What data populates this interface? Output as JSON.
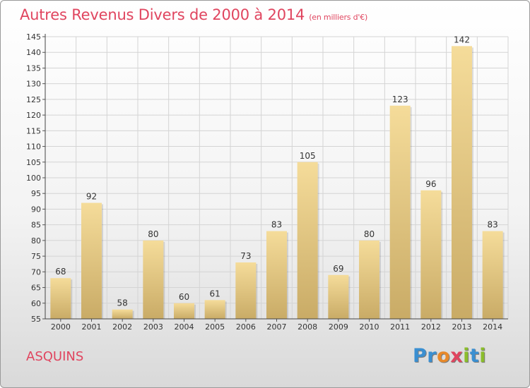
{
  "header": {
    "title": "Autres Revenus Divers de 2000 à 2014",
    "subtitle": "(en milliers d'€)"
  },
  "footer": {
    "town": "ASQUINS",
    "logo_letters": [
      {
        "char": "P",
        "color": "#3a8fd1"
      },
      {
        "char": "r",
        "color": "#3a8fd1"
      },
      {
        "char": "o",
        "color": "#e8892a"
      },
      {
        "char": "x",
        "color": "#e0455f"
      },
      {
        "char": "i",
        "color": "#8bbd2c"
      },
      {
        "char": "t",
        "color": "#3a8fd1"
      },
      {
        "char": "i",
        "color": "#8bbd2c"
      }
    ]
  },
  "colors": {
    "bar_light": "#f5dc9a",
    "bar_dark": "#c9ab66",
    "accent": "#e0455f",
    "grid": "#d4d4d4"
  },
  "chart_data": {
    "type": "bar",
    "title": "Autres Revenus Divers de 2000 à 2014",
    "subtitle": "(en milliers d'€)",
    "categories": [
      "2000",
      "2001",
      "2002",
      "2003",
      "2004",
      "2005",
      "2006",
      "2007",
      "2008",
      "2009",
      "2010",
      "2011",
      "2012",
      "2013",
      "2014"
    ],
    "values": [
      68,
      92,
      58,
      80,
      60,
      61,
      73,
      83,
      105,
      69,
      80,
      123,
      96,
      142,
      83
    ],
    "ylim": [
      55,
      145
    ],
    "yticks": [
      55,
      60,
      65,
      70,
      75,
      80,
      85,
      90,
      95,
      100,
      105,
      110,
      115,
      120,
      125,
      130,
      135,
      140,
      145
    ],
    "grid": true,
    "data_labels": true
  }
}
